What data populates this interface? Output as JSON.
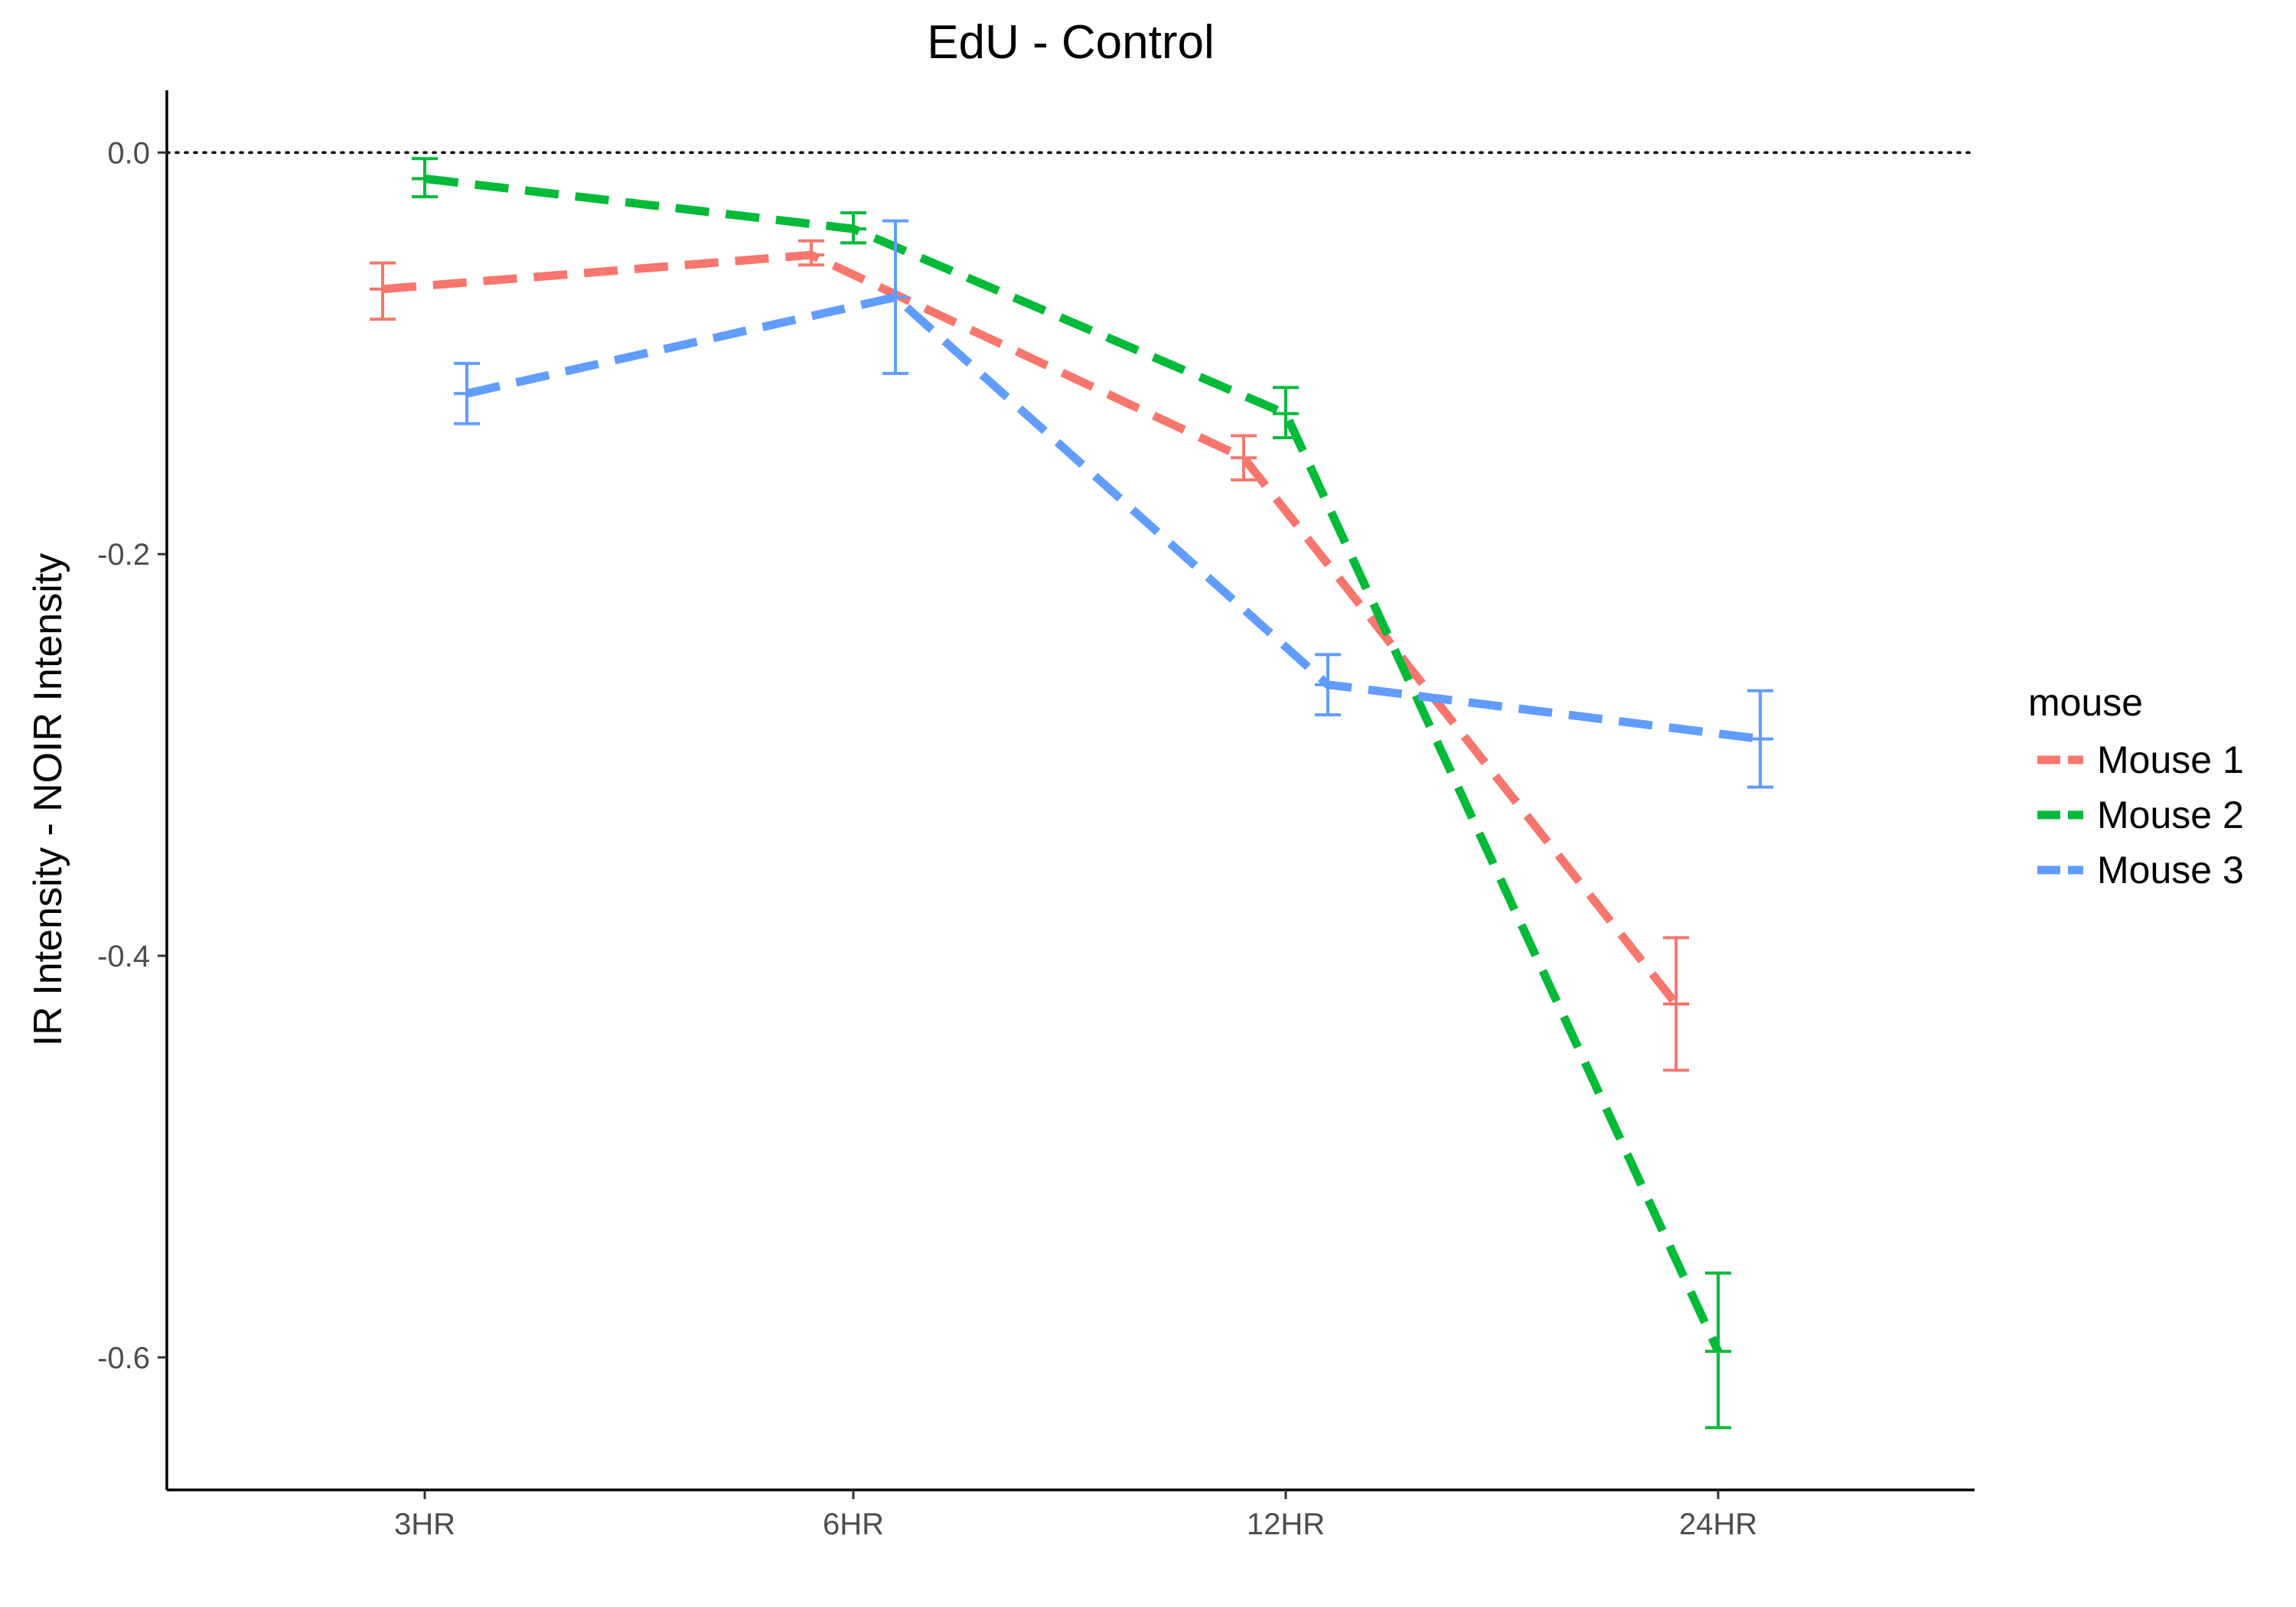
{
  "chart_data": {
    "type": "line",
    "title": "EdU - Control",
    "xlabel": "",
    "ylabel": "IR Intensity - NOIR Intensity",
    "categories": [
      "3HR",
      "6HR",
      "12HR",
      "24HR"
    ],
    "ylim": [
      -0.666,
      0.031
    ],
    "yticks": [
      0.0,
      -0.2,
      -0.4,
      -0.6
    ],
    "ytick_labels": [
      "0.0",
      "-0.2",
      "-0.4",
      "-0.6"
    ],
    "reference_line": {
      "y": 0.0,
      "style": "dotted"
    },
    "grid": false,
    "legend": {
      "title": "mouse",
      "position": "right"
    },
    "line_style": "dashed",
    "error_bars": true,
    "series": [
      {
        "name": "Mouse 1",
        "color": "#F8766D",
        "values": [
          -0.068,
          -0.051,
          -0.152,
          -0.424
        ],
        "err_low": [
          -0.083,
          -0.056,
          -0.163,
          -0.457
        ],
        "err_high": [
          -0.055,
          -0.044,
          -0.141,
          -0.391
        ]
      },
      {
        "name": "Mouse 2",
        "color": "#00BA38",
        "values": [
          -0.013,
          -0.038,
          -0.13,
          -0.597
        ],
        "err_low": [
          -0.022,
          -0.045,
          -0.142,
          -0.635
        ],
        "err_high": [
          -0.003,
          -0.03,
          -0.117,
          -0.558
        ]
      },
      {
        "name": "Mouse 3",
        "color": "#619CFF",
        "values": [
          -0.12,
          -0.072,
          -0.265,
          -0.292
        ],
        "err_low": [
          -0.135,
          -0.11,
          -0.28,
          -0.316
        ],
        "err_high": [
          -0.105,
          -0.034,
          -0.25,
          -0.268
        ]
      }
    ]
  }
}
